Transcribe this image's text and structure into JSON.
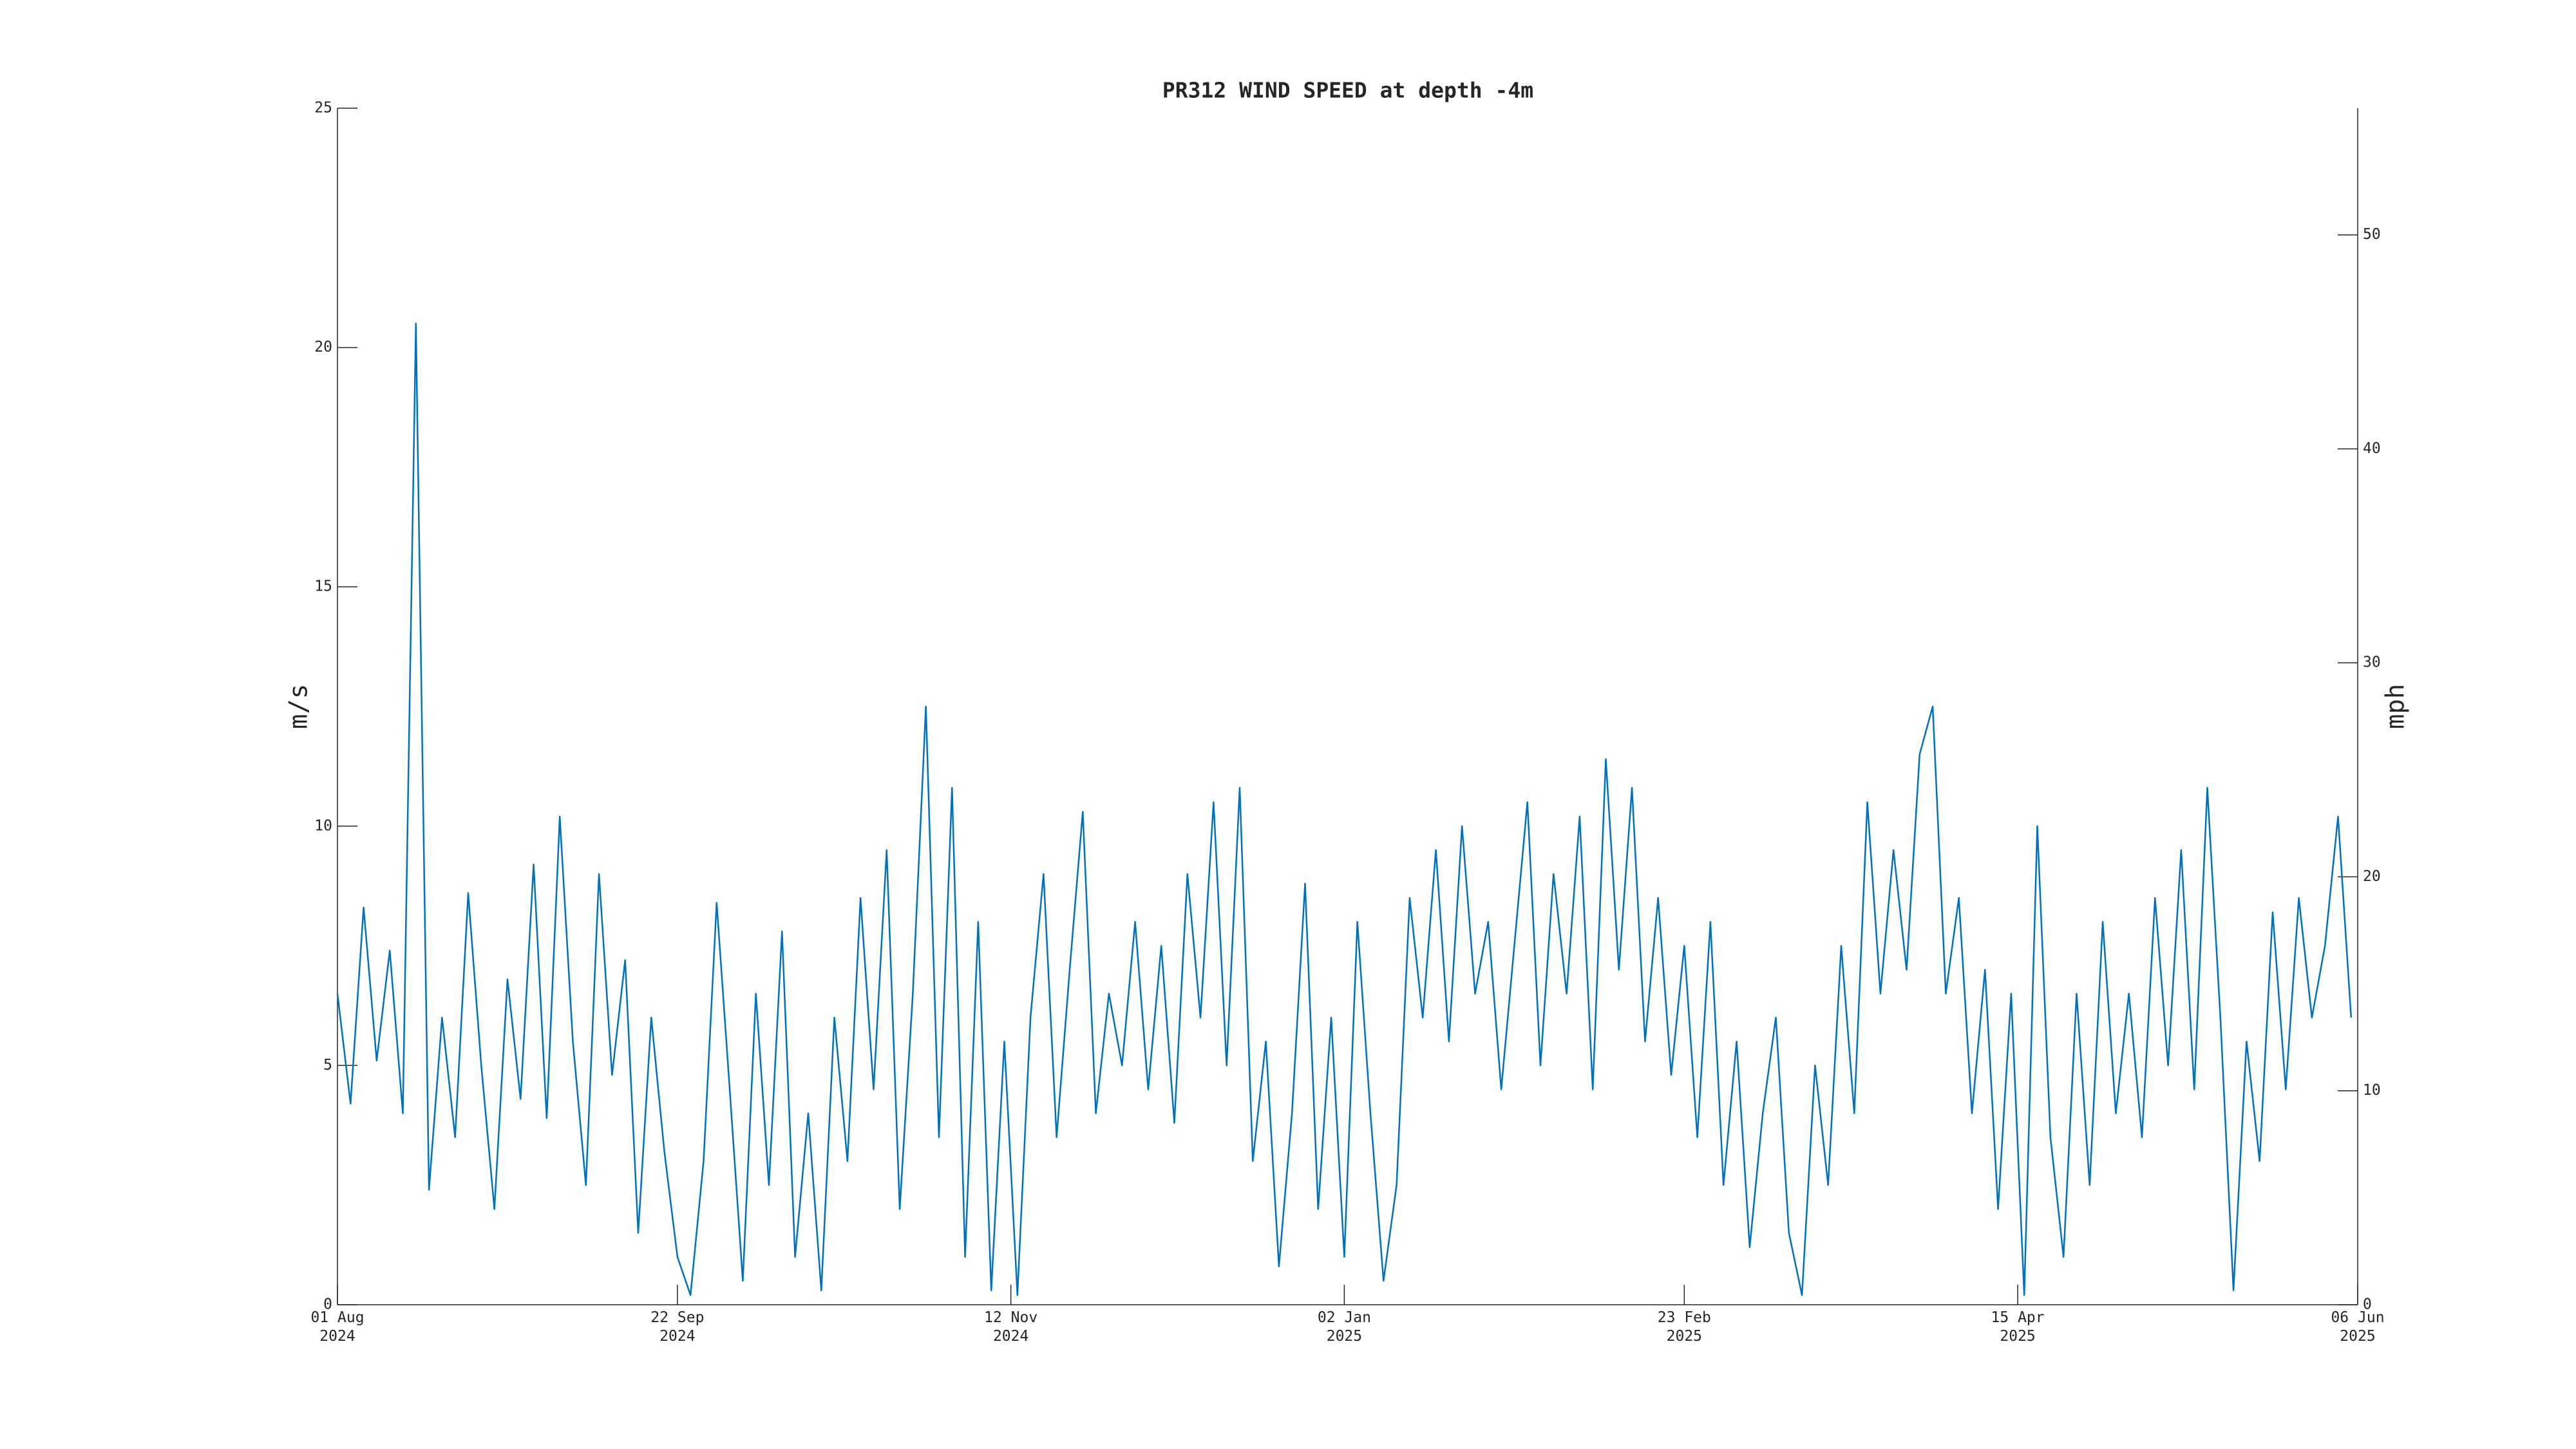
{
  "chart_data": {
    "type": "line",
    "title": "PR312 WIND SPEED at depth -4m",
    "ylabel": "m/s",
    "y2label": "mph",
    "color": "#0072bd",
    "x": [
      "2024-08-01",
      "2024-08-03",
      "2024-08-05",
      "2024-08-07",
      "2024-08-09",
      "2024-08-11",
      "2024-08-13",
      "2024-08-15",
      "2024-08-17",
      "2024-08-19",
      "2024-08-21",
      "2024-08-23",
      "2024-08-25",
      "2024-08-27",
      "2024-08-29",
      "2024-08-31",
      "2024-09-02",
      "2024-09-04",
      "2024-09-06",
      "2024-09-08",
      "2024-09-10",
      "2024-09-12",
      "2024-09-14",
      "2024-09-16",
      "2024-09-18",
      "2024-09-20",
      "2024-09-22",
      "2024-09-24",
      "2024-09-26",
      "2024-09-28",
      "2024-09-30",
      "2024-10-02",
      "2024-10-04",
      "2024-10-06",
      "2024-10-08",
      "2024-10-10",
      "2024-10-12",
      "2024-10-14",
      "2024-10-16",
      "2024-10-18",
      "2024-10-20",
      "2024-10-22",
      "2024-10-24",
      "2024-10-26",
      "2024-10-28",
      "2024-10-30",
      "2024-11-01",
      "2024-11-03",
      "2024-11-05",
      "2024-11-07",
      "2024-11-09",
      "2024-11-11",
      "2024-11-13",
      "2024-11-15",
      "2024-11-17",
      "2024-11-19",
      "2024-11-21",
      "2024-11-23",
      "2024-11-25",
      "2024-11-27",
      "2024-11-29",
      "2024-12-01",
      "2024-12-03",
      "2024-12-05",
      "2024-12-07",
      "2024-12-09",
      "2024-12-11",
      "2024-12-13",
      "2024-12-15",
      "2024-12-17",
      "2024-12-19",
      "2024-12-21",
      "2024-12-23",
      "2024-12-25",
      "2024-12-27",
      "2024-12-29",
      "2024-12-31",
      "2025-01-02",
      "2025-01-04",
      "2025-01-06",
      "2025-01-08",
      "2025-01-10",
      "2025-01-12",
      "2025-01-14",
      "2025-01-16",
      "2025-01-18",
      "2025-01-20",
      "2025-01-22",
      "2025-01-24",
      "2025-01-26",
      "2025-01-28",
      "2025-01-30",
      "2025-02-01",
      "2025-02-03",
      "2025-02-05",
      "2025-02-07",
      "2025-02-09",
      "2025-02-11",
      "2025-02-13",
      "2025-02-15",
      "2025-02-17",
      "2025-02-19",
      "2025-02-21",
      "2025-02-23",
      "2025-02-25",
      "2025-02-27",
      "2025-03-01",
      "2025-03-03",
      "2025-03-05",
      "2025-03-07",
      "2025-03-09",
      "2025-03-11",
      "2025-03-13",
      "2025-03-15",
      "2025-03-17",
      "2025-03-19",
      "2025-03-21",
      "2025-03-23",
      "2025-03-25",
      "2025-03-27",
      "2025-03-29",
      "2025-03-31",
      "2025-04-02",
      "2025-04-04",
      "2025-04-06",
      "2025-04-08",
      "2025-04-10",
      "2025-04-12",
      "2025-04-14",
      "2025-04-16",
      "2025-04-18",
      "2025-04-20",
      "2025-04-22",
      "2025-04-24",
      "2025-04-26",
      "2025-04-28",
      "2025-04-30",
      "2025-05-02",
      "2025-05-04",
      "2025-05-06",
      "2025-05-08",
      "2025-05-10",
      "2025-05-12",
      "2025-05-14",
      "2025-05-16",
      "2025-05-18",
      "2025-05-20",
      "2025-05-22",
      "2025-05-24",
      "2025-05-26",
      "2025-05-28",
      "2025-05-30",
      "2025-06-01",
      "2025-06-03",
      "2025-06-05"
    ],
    "values": [
      6.5,
      4.2,
      8.3,
      5.1,
      7.4,
      4.0,
      20.5,
      2.4,
      6.0,
      3.5,
      8.6,
      5.0,
      2.0,
      6.8,
      4.3,
      9.2,
      3.9,
      10.2,
      5.5,
      2.5,
      9.0,
      4.8,
      7.2,
      1.5,
      6.0,
      3.2,
      1.0,
      0.2,
      3.0,
      8.4,
      4.5,
      0.5,
      6.5,
      2.5,
      7.8,
      1.0,
      4.0,
      0.3,
      6.0,
      3.0,
      8.5,
      4.5,
      9.5,
      2.0,
      6.5,
      12.5,
      3.5,
      10.8,
      1.0,
      8.0,
      0.3,
      5.5,
      0.2,
      6.0,
      9.0,
      3.5,
      7.0,
      10.3,
      4.0,
      6.5,
      5.0,
      8.0,
      4.5,
      7.5,
      3.8,
      9.0,
      6.0,
      10.5,
      5.0,
      10.8,
      3.0,
      5.5,
      0.8,
      4.0,
      8.8,
      2.0,
      6.0,
      1.0,
      8.0,
      4.0,
      0.5,
      2.5,
      8.5,
      6.0,
      9.5,
      5.5,
      10.0,
      6.5,
      8.0,
      4.5,
      7.5,
      10.5,
      5.0,
      9.0,
      6.5,
      10.2,
      4.5,
      11.4,
      7.0,
      10.8,
      5.5,
      8.5,
      4.8,
      7.5,
      3.5,
      8.0,
      2.5,
      5.5,
      1.2,
      4.0,
      6.0,
      1.5,
      0.2,
      5.0,
      2.5,
      7.5,
      4.0,
      10.5,
      6.5,
      9.5,
      7.0,
      11.5,
      12.5,
      6.5,
      8.5,
      4.0,
      7.0,
      2.0,
      6.5,
      0.2,
      10.0,
      3.5,
      1.0,
      6.5,
      2.5,
      8.0,
      4.0,
      6.5,
      3.5,
      8.5,
      5.0,
      9.5,
      4.5,
      10.8,
      6.0,
      0.3,
      5.5,
      3.0,
      8.2,
      4.5,
      8.5,
      6.0,
      7.5,
      10.2,
      6.0
    ],
    "xlim": [
      "2024-08-01",
      "2025-06-06"
    ],
    "xticks": [
      {
        "value": "2024-08-01",
        "label": "01 Aug\n2024"
      },
      {
        "value": "2024-09-22",
        "label": "22 Sep\n2024"
      },
      {
        "value": "2024-11-12",
        "label": "12 Nov\n2024"
      },
      {
        "value": "2025-01-02",
        "label": "02 Jan\n2025"
      },
      {
        "value": "2025-02-23",
        "label": "23 Feb\n2025"
      },
      {
        "value": "2025-04-15",
        "label": "15 Apr\n2025"
      },
      {
        "value": "2025-06-06",
        "label": "06 Jun\n2025"
      }
    ],
    "ylim": [
      0,
      25
    ],
    "yticks": [
      0,
      5,
      10,
      15,
      20,
      25
    ],
    "y2lim": [
      0,
      55.92
    ],
    "y2ticks": [
      0,
      10,
      20,
      30,
      40,
      50
    ]
  }
}
